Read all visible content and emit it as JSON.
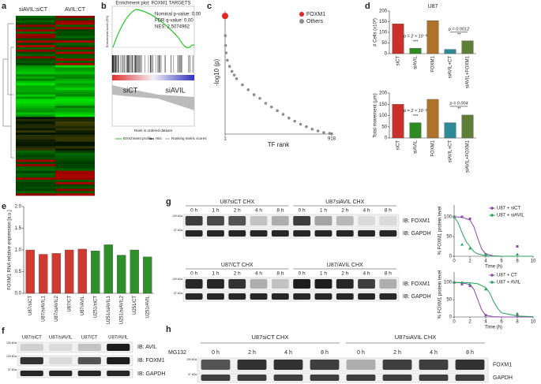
{
  "panels": [
    "a",
    "b",
    "c",
    "d",
    "e",
    "f",
    "g",
    "h"
  ],
  "heatmap": {
    "columns": [
      "siAVIL:siCT",
      "AVIL:CT"
    ]
  },
  "gsea": {
    "title": "Enrichment plot: FOXM1 TARGETS",
    "stats": [
      "Nominal p-value: 0.00",
      "FDR q-value: 0.00",
      "NES: 2.5074962"
    ],
    "groups": [
      "siCT",
      "siAVIL"
    ],
    "ylabel": "Enrichment score (ES)",
    "xlabel": "Rank in ordered dataset",
    "legend": [
      "Enrichment profile",
      "Hits",
      "Ranking metric scores"
    ]
  },
  "chart_data": [
    {
      "type": "scatter",
      "ylabel": "-log10 (p)",
      "xlabel": "TF rank",
      "xlim": [
        1,
        918
      ],
      "xticks": [
        1,
        918
      ],
      "ylim": [
        0,
        10
      ],
      "legend": "upper right",
      "series": [
        {
          "name": "FOXM1",
          "color": "#e8231f",
          "x": [
            1
          ],
          "values": [
            9.6
          ]
        },
        {
          "name": "Others",
          "color": "#8c8c8c",
          "x": [
            3,
            5,
            10,
            20,
            40,
            60,
            80,
            100,
            150,
            200,
            250,
            300,
            350,
            400,
            450,
            500,
            550,
            600,
            650,
            700,
            750,
            800,
            850,
            900,
            918
          ],
          "values": [
            8.0,
            7.2,
            6.6,
            6.0,
            5.5,
            5.1,
            4.8,
            4.5,
            4.0,
            3.6,
            3.2,
            2.9,
            2.5,
            2.2,
            1.9,
            1.6,
            1.3,
            1.05,
            0.8,
            0.6,
            0.4,
            0.25,
            0.12,
            0.05,
            0.02
          ]
        }
      ]
    },
    {
      "type": "bar",
      "title": "U87",
      "ylabel": "# Cells (x10³)",
      "categories": [
        "siCT",
        "siAVIL",
        "FOXM1",
        "siAVIL+CT",
        "siAVIL+FOXM1"
      ],
      "values": [
        140,
        25,
        155,
        20,
        60
      ],
      "colors": [
        "#c8312c",
        "#2e8b22",
        "#b0722a",
        "#2b8b96",
        "#5f7f37"
      ],
      "ylim": [
        0,
        200
      ],
      "yticks": [
        0,
        50,
        100,
        150,
        200
      ],
      "annotations": [
        "p = 2 × 10⁻⁴",
        "***",
        "p = 0.0012",
        "**"
      ]
    },
    {
      "type": "bar",
      "ylabel": "Total movement (μm)",
      "categories": [
        "siCT",
        "siAVIL",
        "FOXM1",
        "siAVIL+CT",
        "siAVIL+FOXM1"
      ],
      "values": [
        150,
        68,
        172,
        68,
        102
      ],
      "colors": [
        "#c8312c",
        "#2e8b22",
        "#b0722a",
        "#2b8b96",
        "#5f7f37"
      ],
      "ylim": [
        0,
        200
      ],
      "yticks": [
        0,
        50,
        100,
        150,
        200
      ],
      "annotations": [
        "p = 2 × 10⁻⁵",
        "***",
        "p = 0.004",
        "**"
      ]
    },
    {
      "type": "bar",
      "ylabel": "FOXM1 RNA relative expression [a.u.]",
      "categories": [
        "U87/siCT",
        "U87/siAVIL1",
        "U87/siAVIL2",
        "U87/CT",
        "U87/AVIL",
        "U251/siCT",
        "U251/siAVIL1",
        "U251/siAVIL2",
        "U251/CT",
        "U251/AVIL"
      ],
      "values": [
        1.0,
        0.9,
        0.92,
        1.0,
        1.02,
        0.98,
        1.12,
        0.88,
        1.0,
        0.84
      ],
      "colors": [
        "#d03a30",
        "#d03a30",
        "#d03a30",
        "#d03a30",
        "#d03a30",
        "#2f8f2a",
        "#2f8f2a",
        "#2f8f2a",
        "#2f8f2a",
        "#2f8f2a"
      ],
      "ylim": [
        0,
        2.0
      ],
      "yticks": [
        {
          "value": 0,
          "label": "0.0"
        },
        0.5,
        {
          "value": 1,
          "label": "1.0"
        },
        1.5,
        {
          "value": 2,
          "label": "2.0"
        }
      ]
    },
    {
      "type": "line",
      "ylabel": "% FOXM1 protein level",
      "xlabel": "Time (h)",
      "xlim": [
        0,
        10
      ],
      "xticks": [
        0,
        2,
        4,
        6,
        8,
        10
      ],
      "ylim": [
        0,
        130
      ],
      "yticks": [
        0,
        50,
        100
      ],
      "legend": "upper right",
      "series": [
        {
          "name": "U87 + siCT",
          "color": "#8e44ad",
          "x": [
            0,
            1,
            2,
            4,
            8
          ],
          "values": [
            100,
            100,
            95,
            5,
            25
          ],
          "curve_x": [
            0,
            1,
            2,
            2.5,
            3,
            3.5,
            4,
            5,
            6,
            8,
            10
          ],
          "curve_values": [
            100,
            99,
            92,
            75,
            45,
            18,
            6,
            1,
            0,
            0,
            0
          ]
        },
        {
          "name": "U87 + siAVIL",
          "color": "#27a35a",
          "x": [
            0,
            1,
            2,
            4,
            8
          ],
          "values": [
            100,
            30,
            20,
            5,
            5
          ],
          "curve_x": [
            0,
            0.5,
            1,
            1.5,
            2,
            2.5,
            3,
            4,
            6,
            8,
            10
          ],
          "curve_values": [
            100,
            85,
            60,
            38,
            25,
            12,
            6,
            1,
            0,
            0,
            0
          ]
        }
      ]
    },
    {
      "type": "line",
      "ylabel": "% FOXM1 protein level",
      "xlabel": "Time (h)",
      "xlim": [
        0,
        10
      ],
      "xticks": [
        0,
        2,
        4,
        6,
        8,
        10
      ],
      "ylim": [
        0,
        130
      ],
      "yticks": [
        0,
        50,
        100
      ],
      "legend": "upper right",
      "series": [
        {
          "name": "U87 + CT",
          "color": "#8e44ad",
          "x": [
            0,
            1,
            2,
            4,
            8
          ],
          "values": [
            100,
            95,
            90,
            5,
            5
          ],
          "curve_x": [
            0,
            1,
            2,
            2.5,
            3,
            3.5,
            4,
            5,
            6,
            8,
            10
          ],
          "curve_values": [
            100,
            99,
            94,
            80,
            50,
            20,
            5,
            1,
            0,
            0,
            0
          ]
        },
        {
          "name": "U87 + AVIL",
          "color": "#27a35a",
          "x": [
            0,
            1,
            2,
            4,
            8
          ],
          "values": [
            100,
            100,
            95,
            80,
            10
          ],
          "curve_x": [
            0,
            1,
            2,
            3,
            4,
            4.5,
            5,
            5.5,
            6,
            8,
            10
          ],
          "curve_values": [
            100,
            100,
            99,
            96,
            85,
            70,
            45,
            25,
            12,
            3,
            1
          ]
        }
      ]
    }
  ],
  "blot_f": {
    "lanes": [
      "U87/siCT",
      "U87/siAVIL",
      "U87/CT",
      "U87/AVIL"
    ],
    "rows": [
      "IB: AVIL",
      "IB: FOXM1",
      "IB: GAPDH"
    ],
    "markers": [
      "100 kDa",
      "100 kDa",
      "37 kDa"
    ]
  },
  "blot_g": {
    "groups_top": [
      "U87siCT CHX",
      "U87siAVIL CHX"
    ],
    "groups_bottom": [
      "U87/CT CHX",
      "U87/AVIL CHX"
    ],
    "times": [
      "0 h",
      "1 h",
      "2 h",
      "4 h",
      "8 h"
    ],
    "rows": [
      "IB: FOXM1",
      "IB: GAPDH"
    ],
    "markers": [
      "100 kDa",
      "37 kDa"
    ]
  },
  "blot_h": {
    "groups": [
      "U87siCT CHX",
      "U87siAVIL CHX"
    ],
    "treatment": "MG132",
    "times": [
      "0 h",
      "2 h",
      "4 h",
      "8 h"
    ],
    "rows": [
      "FOXM1",
      "GAPDH"
    ],
    "markers": [
      "100 kDa",
      "37 kDa"
    ]
  }
}
